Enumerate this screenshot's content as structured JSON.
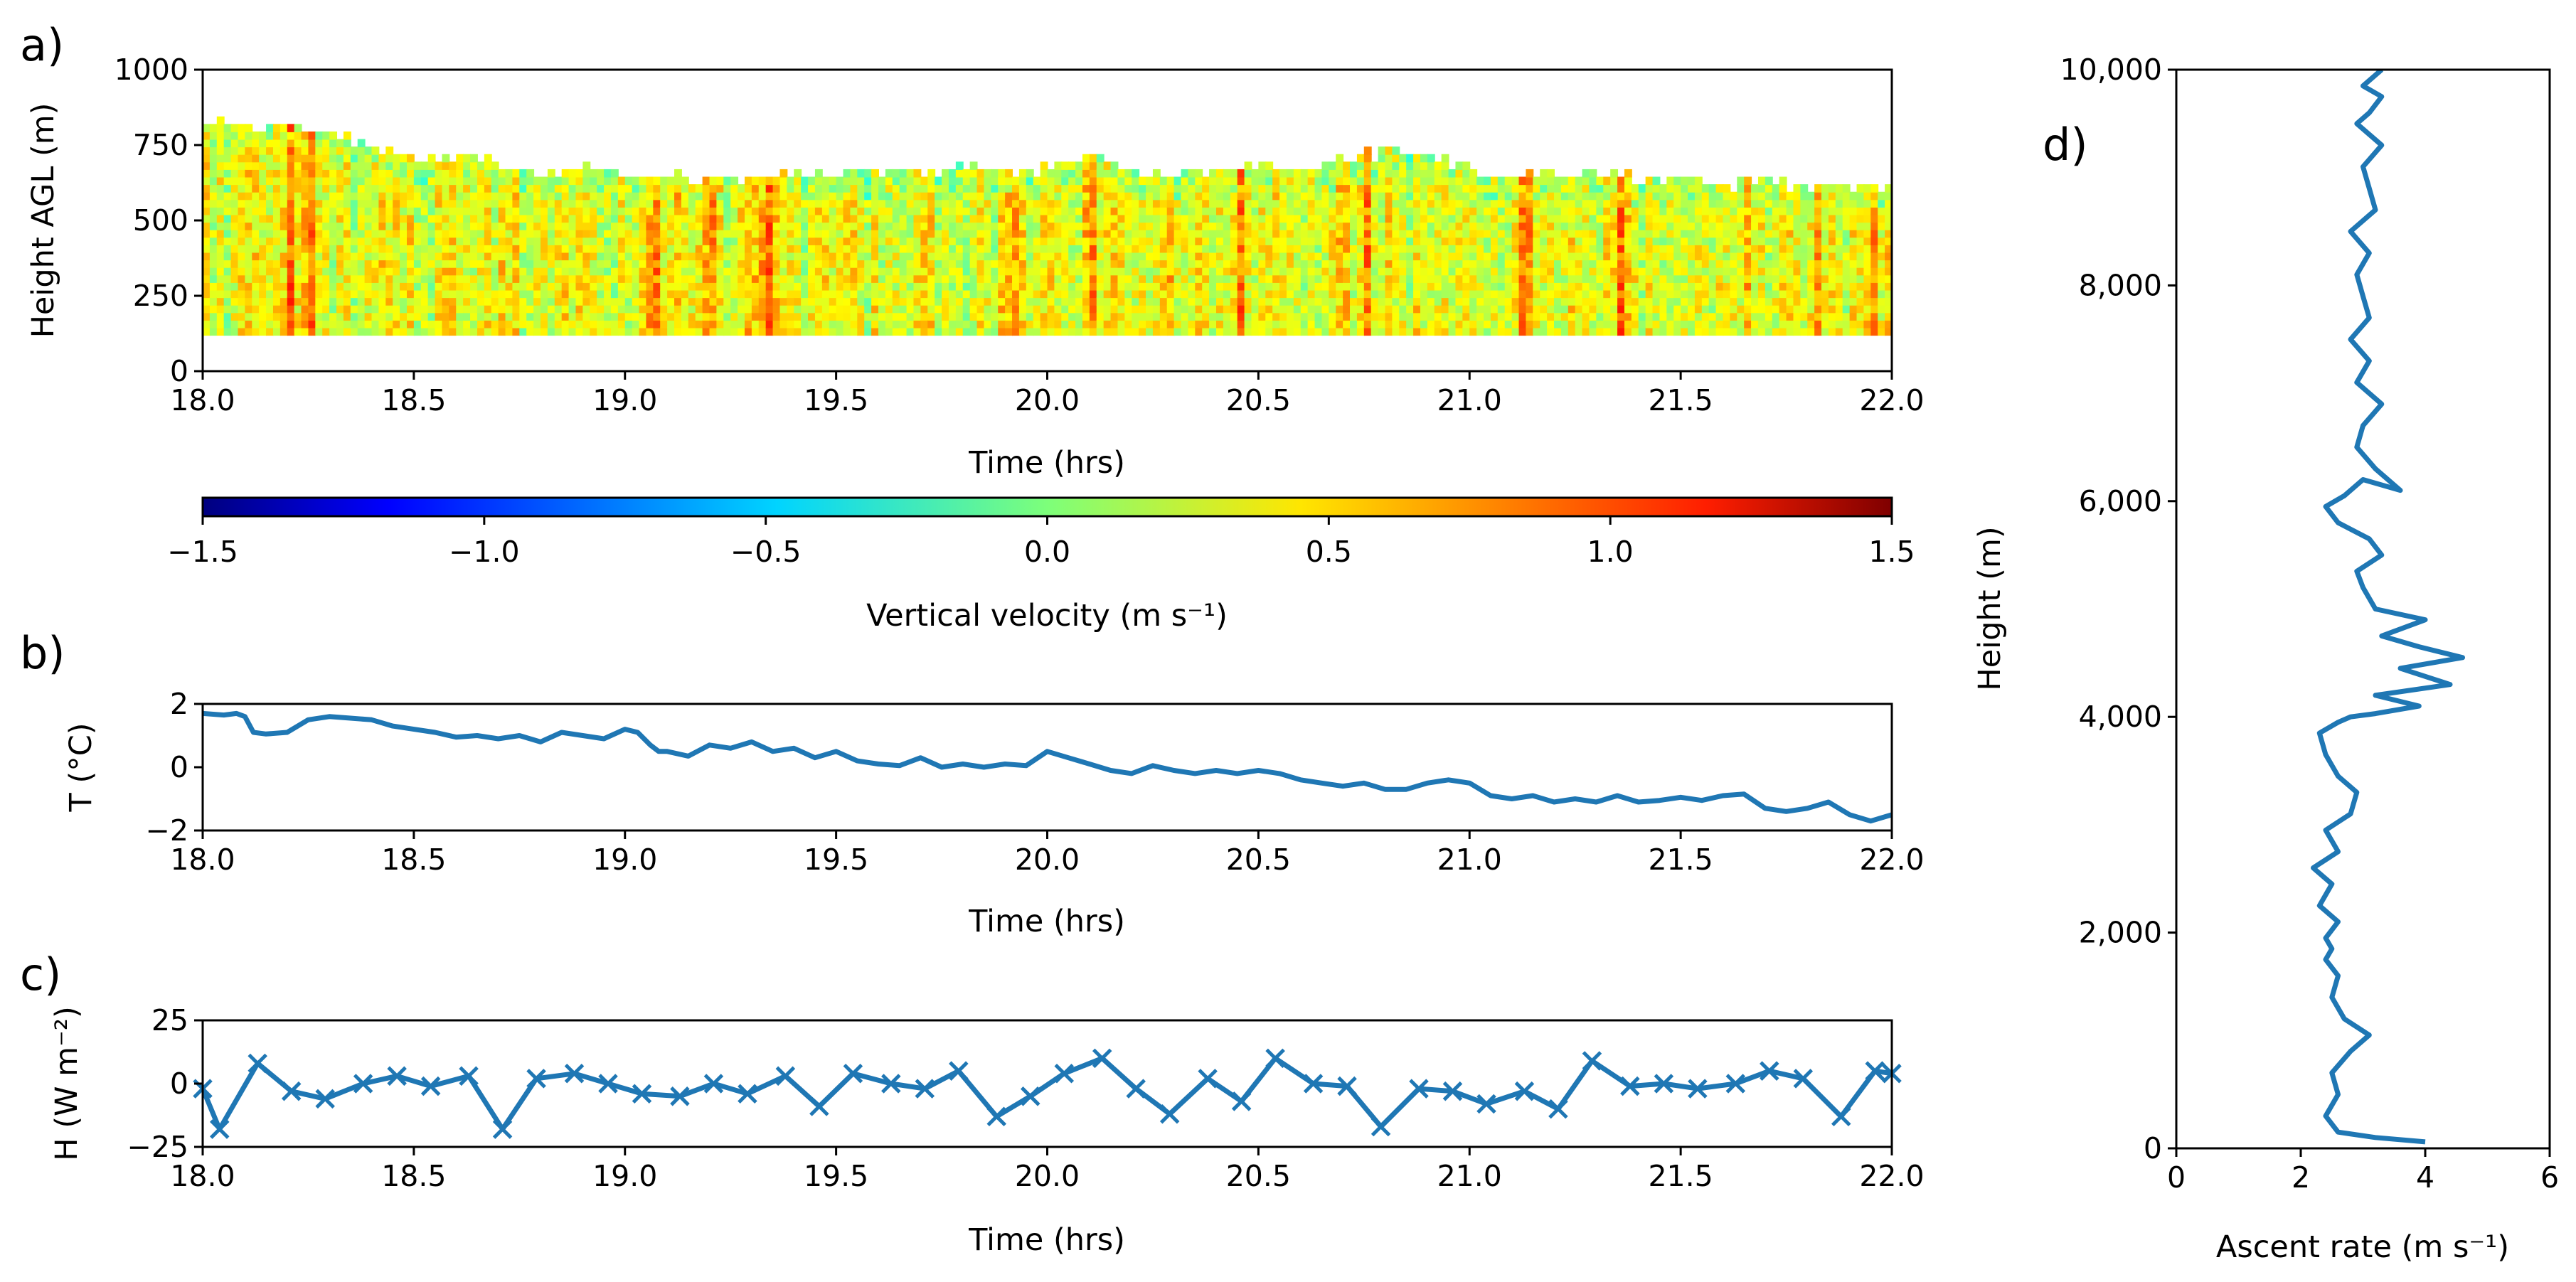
{
  "panel_labels": {
    "a": "a)",
    "b": "b)",
    "c": "c)",
    "d": "d)"
  },
  "chart_data": [
    {
      "id": "a",
      "type": "heatmap",
      "title": "",
      "xlabel": "Time (hrs)",
      "ylabel": "Height AGL (m)",
      "xlim": [
        18.0,
        22.0
      ],
      "ylim": [
        0,
        1000
      ],
      "xticks": [
        "18.0",
        "18.5",
        "19.0",
        "19.5",
        "20.0",
        "20.5",
        "21.0",
        "21.5",
        "22.0"
      ],
      "yticks": [
        "0",
        "250",
        "500",
        "750",
        "1000"
      ],
      "lowest_gate_m": 120,
      "top_height_profile": {
        "time": [
          18.0,
          18.1,
          18.2,
          18.3,
          18.4,
          18.5,
          18.6,
          18.7,
          18.8,
          18.9,
          19.0,
          19.1,
          19.2,
          19.3,
          19.4,
          19.5,
          19.6,
          19.7,
          19.8,
          19.9,
          20.0,
          20.1,
          20.2,
          20.3,
          20.4,
          20.5,
          20.6,
          20.7,
          20.8,
          20.9,
          21.0,
          21.1,
          21.2,
          21.3,
          21.4,
          21.5,
          21.6,
          21.7,
          21.8,
          21.9,
          22.0
        ],
        "height_m": [
          820,
          790,
          800,
          780,
          720,
          700,
          710,
          680,
          650,
          660,
          640,
          640,
          630,
          620,
          650,
          640,
          640,
          660,
          670,
          650,
          660,
          690,
          650,
          640,
          660,
          660,
          650,
          690,
          720,
          700,
          650,
          640,
          640,
          650,
          620,
          630,
          610,
          620,
          600,
          600,
          610
        ]
      },
      "strong_updraft_times": [
        18.2,
        18.25,
        19.06,
        19.12,
        19.2,
        19.28,
        19.33,
        19.9,
        20.1,
        20.28,
        20.45,
        20.68,
        20.75,
        21.12,
        21.35,
        21.65,
        21.82,
        21.95
      ],
      "colorbar": {
        "label": "Vertical velocity (m s⁻¹)",
        "vmin": -1.5,
        "vmax": 1.5,
        "ticks": [
          "−1.5",
          "−1.0",
          "−0.5",
          "0.0",
          "0.5",
          "1.0",
          "1.5"
        ],
        "colormap": "jet"
      }
    },
    {
      "id": "b",
      "type": "line",
      "xlabel": "Time (hrs)",
      "ylabel": "T (°C)",
      "xlim": [
        18.0,
        22.0
      ],
      "ylim": [
        -2,
        2
      ],
      "xticks": [
        "18.0",
        "18.5",
        "19.0",
        "19.5",
        "20.0",
        "20.5",
        "21.0",
        "21.5",
        "22.0"
      ],
      "yticks": [
        "−2",
        "0",
        "2"
      ],
      "color": "#1f77b4",
      "x": [
        18.0,
        18.05,
        18.08,
        18.1,
        18.12,
        18.15,
        18.2,
        18.25,
        18.3,
        18.35,
        18.4,
        18.45,
        18.5,
        18.55,
        18.6,
        18.65,
        18.7,
        18.75,
        18.8,
        18.85,
        18.9,
        18.95,
        19.0,
        19.03,
        19.06,
        19.08,
        19.1,
        19.15,
        19.2,
        19.25,
        19.3,
        19.35,
        19.4,
        19.45,
        19.5,
        19.55,
        19.6,
        19.65,
        19.7,
        19.75,
        19.8,
        19.85,
        19.9,
        19.95,
        20.0,
        20.05,
        20.1,
        20.15,
        20.2,
        20.25,
        20.3,
        20.35,
        20.4,
        20.45,
        20.5,
        20.55,
        20.6,
        20.65,
        20.7,
        20.75,
        20.8,
        20.85,
        20.9,
        20.95,
        21.0,
        21.05,
        21.1,
        21.15,
        21.2,
        21.25,
        21.3,
        21.35,
        21.4,
        21.45,
        21.5,
        21.55,
        21.6,
        21.65,
        21.7,
        21.75,
        21.8,
        21.85,
        21.9,
        21.95,
        22.0
      ],
      "y": [
        1.7,
        1.65,
        1.7,
        1.6,
        1.1,
        1.05,
        1.1,
        1.5,
        1.6,
        1.55,
        1.5,
        1.3,
        1.2,
        1.1,
        0.95,
        1.0,
        0.9,
        1.0,
        0.8,
        1.1,
        1.0,
        0.9,
        1.2,
        1.1,
        0.7,
        0.5,
        0.5,
        0.35,
        0.7,
        0.6,
        0.8,
        0.5,
        0.6,
        0.3,
        0.5,
        0.2,
        0.1,
        0.05,
        0.3,
        0.0,
        0.1,
        0.0,
        0.1,
        0.05,
        0.5,
        0.3,
        0.1,
        -0.1,
        -0.2,
        0.05,
        -0.1,
        -0.2,
        -0.1,
        -0.2,
        -0.1,
        -0.2,
        -0.4,
        -0.5,
        -0.6,
        -0.5,
        -0.7,
        -0.7,
        -0.5,
        -0.4,
        -0.5,
        -0.9,
        -1.0,
        -0.9,
        -1.1,
        -1.0,
        -1.1,
        -0.9,
        -1.1,
        -1.05,
        -0.95,
        -1.05,
        -0.9,
        -0.85,
        -1.3,
        -1.4,
        -1.3,
        -1.1,
        -1.5,
        -1.7,
        -1.5
      ]
    },
    {
      "id": "c",
      "type": "line",
      "marker": "x",
      "xlabel": "Time (hrs)",
      "ylabel": "H (W m⁻²)",
      "xlim": [
        18.0,
        22.0
      ],
      "ylim": [
        -25,
        25
      ],
      "xticks": [
        "18.0",
        "18.5",
        "19.0",
        "19.5",
        "20.0",
        "20.5",
        "21.0",
        "21.5",
        "22.0"
      ],
      "yticks": [
        "−25",
        "0",
        "25"
      ],
      "color": "#1f77b4",
      "x": [
        18.0,
        18.04,
        18.13,
        18.21,
        18.29,
        18.38,
        18.46,
        18.54,
        18.63,
        18.71,
        18.79,
        18.88,
        18.96,
        19.04,
        19.13,
        19.21,
        19.29,
        19.38,
        19.46,
        19.54,
        19.63,
        19.71,
        19.79,
        19.88,
        19.96,
        20.04,
        20.13,
        20.21,
        20.29,
        20.38,
        20.46,
        20.54,
        20.63,
        20.71,
        20.79,
        20.88,
        20.96,
        21.04,
        21.13,
        21.21,
        21.29,
        21.38,
        21.46,
        21.54,
        21.63,
        21.71,
        21.79,
        21.88,
        21.96,
        22.0
      ],
      "y": [
        -2,
        -18,
        8,
        -3,
        -6,
        0,
        3,
        -1,
        3,
        -18,
        2,
        4,
        0,
        -4,
        -5,
        0,
        -4,
        3,
        -9,
        4,
        0,
        -2,
        5,
        -13,
        -5,
        4,
        10,
        -2,
        -12,
        2,
        -7,
        10,
        0,
        -1,
        -17,
        -2,
        -3,
        -8,
        -3,
        -10,
        9,
        -1,
        0,
        -2,
        0,
        5,
        2,
        -13,
        5,
        4
      ]
    },
    {
      "id": "d",
      "type": "line",
      "xlabel": "Ascent rate (m s⁻¹)",
      "ylabel": "Height (m)",
      "xlim": [
        0,
        6
      ],
      "ylim": [
        0,
        10000
      ],
      "xticks": [
        "0",
        "2",
        "4",
        "6"
      ],
      "yticks": [
        "0",
        "2,000",
        "4,000",
        "6,000",
        "8,000",
        "10,000"
      ],
      "color": "#1f77b4",
      "x": [
        4.0,
        3.2,
        2.6,
        2.4,
        2.6,
        2.5,
        2.8,
        3.1,
        2.7,
        2.5,
        2.6,
        2.4,
        2.5,
        2.4,
        2.6,
        2.3,
        2.5,
        2.2,
        2.6,
        2.4,
        2.8,
        2.9,
        2.6,
        2.4,
        2.3,
        2.6,
        2.8,
        3.2,
        3.9,
        3.2,
        4.4,
        3.6,
        4.6,
        3.9,
        3.3,
        4.0,
        3.2,
        3.0,
        2.9,
        3.3,
        3.1,
        2.6,
        2.4,
        2.7,
        3.0,
        3.6,
        3.2,
        2.9,
        3.0,
        3.3,
        2.9,
        3.1,
        2.8,
        3.1,
        3.0,
        2.9,
        3.1,
        2.8,
        3.2,
        3.1,
        3.0,
        3.3,
        2.9,
        3.1,
        3.3,
        3.0,
        3.3
      ],
      "y": [
        60,
        100,
        150,
        300,
        500,
        700,
        900,
        1050,
        1200,
        1400,
        1600,
        1750,
        1850,
        1950,
        2100,
        2250,
        2450,
        2600,
        2750,
        2950,
        3100,
        3300,
        3450,
        3650,
        3850,
        3950,
        4000,
        4030,
        4100,
        4200,
        4300,
        4450,
        4550,
        4650,
        4750,
        4900,
        5000,
        5200,
        5350,
        5500,
        5650,
        5800,
        5950,
        6050,
        6200,
        6100,
        6300,
        6500,
        6700,
        6900,
        7100,
        7300,
        7500,
        7700,
        7900,
        8100,
        8300,
        8500,
        8700,
        8900,
        9100,
        9300,
        9500,
        9600,
        9750,
        9850,
        10000
      ]
    }
  ]
}
